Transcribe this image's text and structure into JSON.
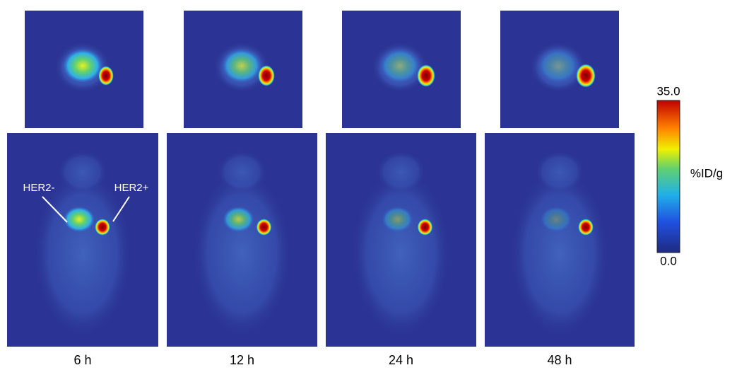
{
  "panels": [
    {
      "time": "6 h"
    },
    {
      "time": "12 h"
    },
    {
      "time": "24 h"
    },
    {
      "time": "48 h"
    }
  ],
  "annotations": {
    "left": "HER2-",
    "right": "HER2+"
  },
  "colorbar": {
    "max": {
      "value": 35,
      "label": "35.0"
    },
    "min": {
      "value": 0,
      "label": "0.0"
    },
    "unit": "%ID/g"
  }
}
